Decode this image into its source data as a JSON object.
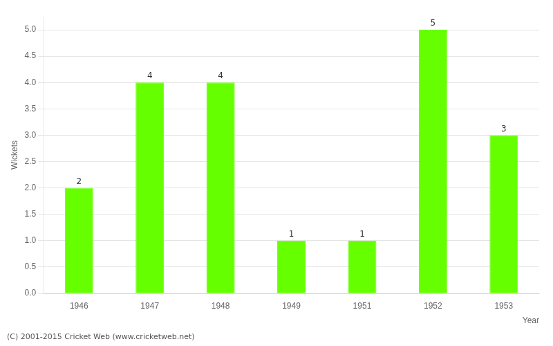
{
  "chart_data": {
    "type": "bar",
    "categories": [
      "1946",
      "1947",
      "1948",
      "1949",
      "1951",
      "1952",
      "1953"
    ],
    "values": [
      2,
      4,
      4,
      1,
      1,
      5,
      3
    ],
    "color": "#66ff00",
    "xlabel": "Year",
    "ylabel": "Wickets",
    "ylim": [
      0,
      5.25
    ],
    "yticks": [
      {
        "value": 0.0,
        "label": "0.0"
      },
      {
        "value": 0.5,
        "label": "0.5"
      },
      {
        "value": 1.0,
        "label": "1.0"
      },
      {
        "value": 1.5,
        "label": "1.5"
      },
      {
        "value": 2.0,
        "label": "2.0"
      },
      {
        "value": 2.5,
        "label": "2.5"
      },
      {
        "value": 3.0,
        "label": "3.0"
      },
      {
        "value": 3.5,
        "label": "3.5"
      },
      {
        "value": 4.0,
        "label": "4.0"
      },
      {
        "value": 4.5,
        "label": "4.5"
      },
      {
        "value": 5.0,
        "label": "5.0"
      }
    ],
    "grid": true,
    "data_labels": true,
    "annotations": [
      "(C) 2001-2015 Cricket Web (www.cricketweb.net)"
    ]
  }
}
